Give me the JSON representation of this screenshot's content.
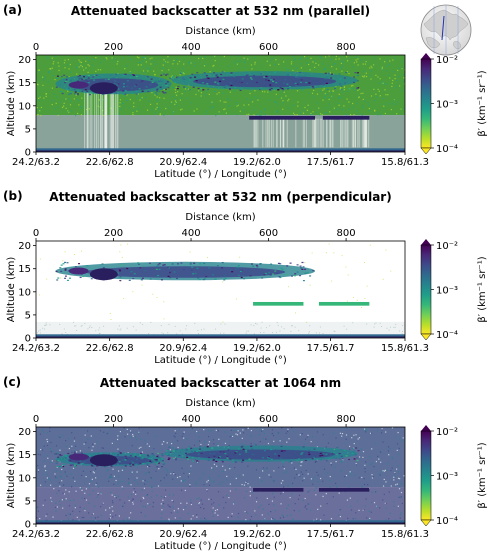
{
  "colors": {
    "cmap": [
      "#fde725",
      "#b5de2b",
      "#6ece58",
      "#35b779",
      "#1f9e89",
      "#26828e",
      "#31688e",
      "#3e4989",
      "#482878",
      "#440154"
    ],
    "clear_air_532": "#4c9e3c",
    "noise_low_532": "#8aa39a",
    "noise_1064": "#5d6f98",
    "noise_1064_low": "#6b6f9c",
    "cloud_dark": "#2a1f5e"
  },
  "globe": {
    "icon": "globe-inset-icon"
  },
  "chart_data": [
    {
      "panel_label": "(a)",
      "type": "heatmap",
      "title": "Attenuated backscatter at 532 nm (parallel)",
      "top_axis_label": "Distance (km)",
      "top_ticks": [
        0,
        200,
        400,
        600,
        800
      ],
      "xlim": [
        0,
        952
      ],
      "ylabel": "Altitude (km)",
      "ylim": [
        0,
        21
      ],
      "yticks": [
        0,
        5,
        10,
        15,
        20
      ],
      "xlabel": "Latitude (°) / Longitude (°)",
      "bottom_tick_labels": [
        "24.2/63.2",
        "22.6/62.8",
        "20.9/62.4",
        "19.2/62.0",
        "17.5/61.7",
        "15.8/61.3"
      ],
      "bottom_tick_distances": [
        0,
        190,
        380,
        570,
        760,
        952
      ],
      "colorbar_label": "β′ (km⁻¹ sr⁻¹)",
      "colorbar_scale": "log",
      "colorbar_range": [
        0.0001,
        0.01
      ],
      "colorbar_ticks": [
        "10⁻²",
        "10⁻³",
        "10⁻⁴"
      ],
      "background": "clear-air-green",
      "features": [
        {
          "name": "upper cirrus, western part",
          "x": [
            50,
            350
          ],
          "alt": [
            12.5,
            17
          ]
        },
        {
          "name": "upper cirrus, eastern part",
          "x": [
            350,
            830
          ],
          "alt": [
            13.5,
            17.5
          ]
        },
        {
          "name": "mid-level cloud layer",
          "x": [
            550,
            860
          ],
          "alt": [
            6.8,
            8
          ]
        },
        {
          "name": "near-surface layer",
          "x": [
            0,
            952
          ],
          "alt": [
            0,
            1
          ]
        }
      ]
    },
    {
      "panel_label": "(b)",
      "type": "heatmap",
      "title": "Attenuated backscatter at 532 nm (perpendicular)",
      "top_axis_label": "Distance (km)",
      "top_ticks": [
        0,
        200,
        400,
        600,
        800
      ],
      "xlim": [
        0,
        952
      ],
      "ylabel": "Altitude (km)",
      "ylim": [
        0,
        21
      ],
      "yticks": [
        0,
        5,
        10,
        15,
        20
      ],
      "xlabel": "Latitude (°) / Longitude (°)",
      "bottom_tick_labels": [
        "24.2/63.2",
        "22.6/62.8",
        "20.9/62.4",
        "19.2/62.0",
        "17.5/61.7",
        "15.8/61.3"
      ],
      "bottom_tick_distances": [
        0,
        190,
        380,
        570,
        760,
        952
      ],
      "colorbar_label": "β′ (km⁻¹ sr⁻¹)",
      "colorbar_scale": "log",
      "colorbar_range": [
        0.0001,
        0.01
      ],
      "colorbar_ticks": [
        "10⁻²",
        "10⁻³",
        "10⁻⁴"
      ],
      "background": "white",
      "features": [
        {
          "name": "upper cirrus",
          "x": [
            50,
            720
          ],
          "alt": [
            12.5,
            16.5
          ]
        },
        {
          "name": "mid-level cloud layer",
          "x": [
            550,
            860
          ],
          "alt": [
            7,
            7.8
          ]
        },
        {
          "name": "near-surface layer",
          "x": [
            0,
            952
          ],
          "alt": [
            0,
            1
          ]
        }
      ]
    },
    {
      "panel_label": "(c)",
      "type": "heatmap",
      "title": "Attenuated backscatter at 1064 nm",
      "top_axis_label": "Distance (km)",
      "top_ticks": [
        0,
        200,
        400,
        600,
        800
      ],
      "xlim": [
        0,
        952
      ],
      "ylabel": "Altitude (km)",
      "ylim": [
        0,
        21
      ],
      "yticks": [
        0,
        5,
        10,
        15,
        20
      ],
      "xlabel": "Latitude (°) / Longitude (°)",
      "bottom_tick_labels": [
        "24.2/63.2",
        "22.6/62.8",
        "20.9/62.4",
        "19.2/62.0",
        "17.5/61.7",
        "15.8/61.3"
      ],
      "bottom_tick_distances": [
        0,
        190,
        380,
        570,
        760,
        952
      ],
      "colorbar_label": "β′ (km⁻¹ sr⁻¹)",
      "colorbar_scale": "log",
      "colorbar_range": [
        0.0001,
        0.01
      ],
      "colorbar_ticks": [
        "10⁻²",
        "10⁻³",
        "10⁻⁴"
      ],
      "background": "noisy-blue",
      "features": [
        {
          "name": "upper cirrus, western part",
          "x": [
            50,
            330
          ],
          "alt": [
            12.5,
            15.5
          ]
        },
        {
          "name": "upper cirrus, eastern part",
          "x": [
            330,
            830
          ],
          "alt": [
            13.5,
            17
          ]
        },
        {
          "name": "mid-level cloud layer",
          "x": [
            550,
            860
          ],
          "alt": [
            7,
            7.8
          ]
        },
        {
          "name": "near-surface layer",
          "x": [
            0,
            952
          ],
          "alt": [
            0,
            1
          ]
        }
      ]
    }
  ]
}
